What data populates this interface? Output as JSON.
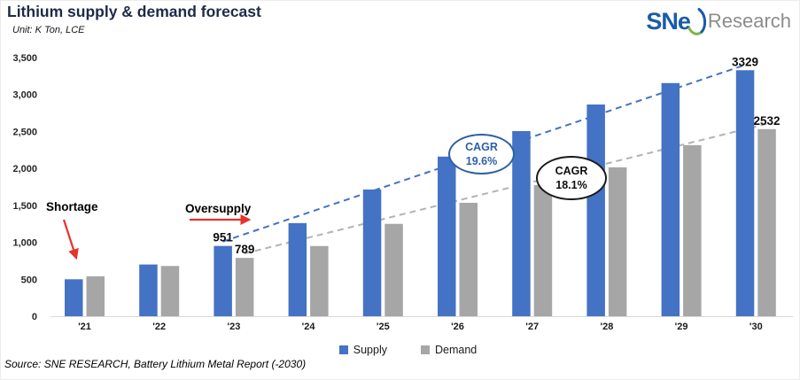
{
  "header": {
    "title": "Lithium supply & demand forecast",
    "unit": "Unit: K Ton, LCE"
  },
  "logo": {
    "brand": "SNe",
    "suffix": "Research"
  },
  "chart_data": {
    "type": "bar",
    "title": "Lithium supply & demand forecast",
    "unit": "K Ton, LCE",
    "categories": [
      "'21",
      "'22",
      "'23",
      "'24",
      "'25",
      "'26",
      "'27",
      "'28",
      "'29",
      "'30"
    ],
    "series": [
      {
        "name": "Supply",
        "color": "#4472C4",
        "values": [
          500,
          700,
          951,
          1260,
          1715,
          2160,
          2505,
          2865,
          3155,
          3329
        ]
      },
      {
        "name": "Demand",
        "color": "#A6A6A6",
        "values": [
          540,
          680,
          789,
          950,
          1250,
          1535,
          1775,
          2015,
          2315,
          2532
        ]
      }
    ],
    "ylim": [
      0,
      3500
    ],
    "yticks": [
      {
        "v": 3500,
        "label": "3,500"
      },
      {
        "v": 3000,
        "label": "3,000"
      },
      {
        "v": 2500,
        "label": "2,500"
      },
      {
        "v": 2000,
        "label": "2,000"
      },
      {
        "v": 1500,
        "label": "1,500"
      },
      {
        "v": 1000,
        "label": "1,000"
      },
      {
        "v": 500,
        "label": "500"
      },
      {
        "v": 0,
        "label": "0"
      }
    ],
    "grid": false,
    "legend_position": "bottom",
    "bar_labels": [
      {
        "series": 0,
        "index": 2,
        "text": "951"
      },
      {
        "series": 1,
        "index": 2,
        "text": "789"
      },
      {
        "series": 0,
        "index": 9,
        "text": "3329"
      },
      {
        "series": 1,
        "index": 9,
        "text": "2532"
      }
    ],
    "trendlines": [
      {
        "series": 0,
        "from": 2,
        "to": 9,
        "color": "#4472C4"
      },
      {
        "series": 1,
        "from": 2,
        "to": 9,
        "color": "#B3B3B3"
      }
    ]
  },
  "annotations": {
    "shortage": "Shortage",
    "oversupply": "Oversupply",
    "cagr_supply": {
      "line1": "CAGR",
      "line2": "19.6%"
    },
    "cagr_demand": {
      "line1": "CAGR",
      "line2": "18.1%"
    }
  },
  "footer": {
    "source": "Source: SNE RESEARCH, Battery Lithium Metal Report (-2030)"
  },
  "colors": {
    "supply": "#4472C4",
    "demand": "#A6A6A6",
    "annotation_red": "#E8312A",
    "title": "#1E2A47",
    "cagr_supply": "#2E5FA8",
    "cagr_demand": "#1a1a1a"
  }
}
